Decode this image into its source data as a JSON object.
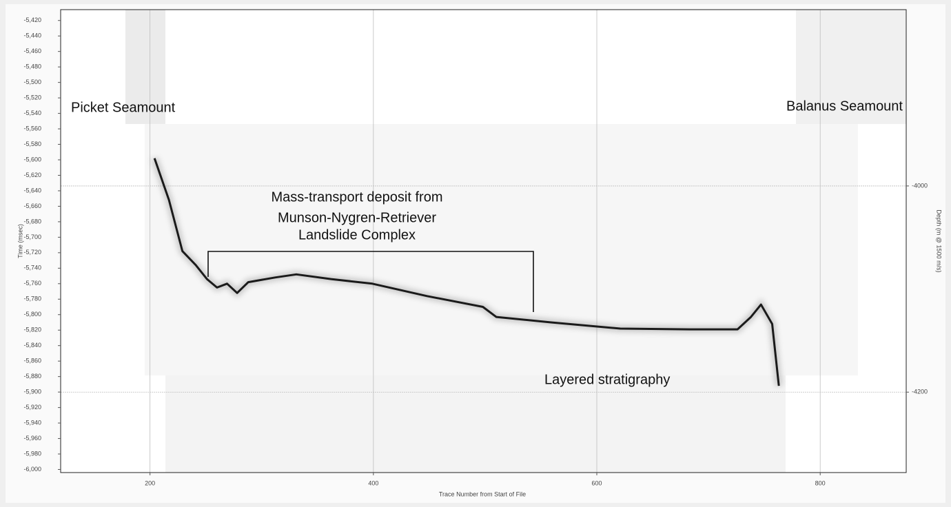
{
  "chart_data": {
    "type": "line",
    "x_label": "Trace Number from Start of File",
    "y_label": "Time (msec)",
    "y2_label": "Depth (m @ 1500 m/s)",
    "annotations": [
      "Picket Seamount",
      "Balanus Seamount",
      [
        "Mass-transport deposit from",
        "Munson-Nygren-Retriever",
        "Landslide Complex"
      ],
      "Layered stratigraphy"
    ],
    "x": [
      204,
      217,
      229,
      241,
      251,
      260,
      269,
      278,
      288,
      312,
      331,
      362,
      399,
      448,
      498,
      510,
      559,
      621,
      683,
      726,
      738,
      747,
      757,
      763
    ],
    "series": [
      {
        "color": "#1a1a1a",
        "values": [
          -5598,
          -5652,
          -5718,
          -5736,
          -5754,
          -5765,
          -5760,
          -5772,
          -5758,
          -5752,
          -5748,
          -5754,
          -5760,
          -5776,
          -5790,
          -5803,
          -5810,
          -5818,
          -5819,
          -5819,
          -5803,
          -5787,
          -5812,
          -5892
        ]
      }
    ],
    "xlim": [
      120,
      877
    ],
    "xticks": [
      200,
      400,
      600,
      800
    ],
    "ylim": [
      -6004,
      -5406
    ],
    "yticks": [
      {
        "value": -5420,
        "label": "-5,420"
      },
      {
        "value": -5440,
        "label": "-5,440"
      },
      {
        "value": -5460,
        "label": "-5,460"
      },
      {
        "value": -5480,
        "label": "-5,480"
      },
      {
        "value": -5500,
        "label": "-5,500"
      },
      {
        "value": -5520,
        "label": "-5,520"
      },
      {
        "value": -5540,
        "label": "-5,540"
      },
      {
        "value": -5560,
        "label": "-5,560"
      },
      {
        "value": -5580,
        "label": "-5,580"
      },
      {
        "value": -5600,
        "label": "-5,600"
      },
      {
        "value": -5620,
        "label": "-5,620"
      },
      {
        "value": -5640,
        "label": "-5,640"
      },
      {
        "value": -5660,
        "label": "-5,660"
      },
      {
        "value": -5680,
        "label": "-5,680"
      },
      {
        "value": -5700,
        "label": "-5,700"
      },
      {
        "value": -5720,
        "label": "-5,720"
      },
      {
        "value": -5740,
        "label": "-5,740"
      },
      {
        "value": -5760,
        "label": "-5,760"
      },
      {
        "value": -5780,
        "label": "-5,780"
      },
      {
        "value": -5800,
        "label": "-5,800"
      },
      {
        "value": -5820,
        "label": "-5,820"
      },
      {
        "value": -5840,
        "label": "-5,840"
      },
      {
        "value": -5860,
        "label": "-5,860"
      },
      {
        "value": -5880,
        "label": "-5,880"
      },
      {
        "value": -5900,
        "label": "-5,900"
      },
      {
        "value": -5920,
        "label": "-5,920"
      },
      {
        "value": -5940,
        "label": "-5,940"
      },
      {
        "value": -5960,
        "label": "-5,960"
      },
      {
        "value": -5980,
        "label": "-5,980"
      },
      {
        "value": -6000,
        "label": "-6,000"
      }
    ],
    "y2lim": [
      -4278,
      -3829
    ],
    "y2ticks": [
      -4000,
      -4200
    ],
    "grid": true
  }
}
